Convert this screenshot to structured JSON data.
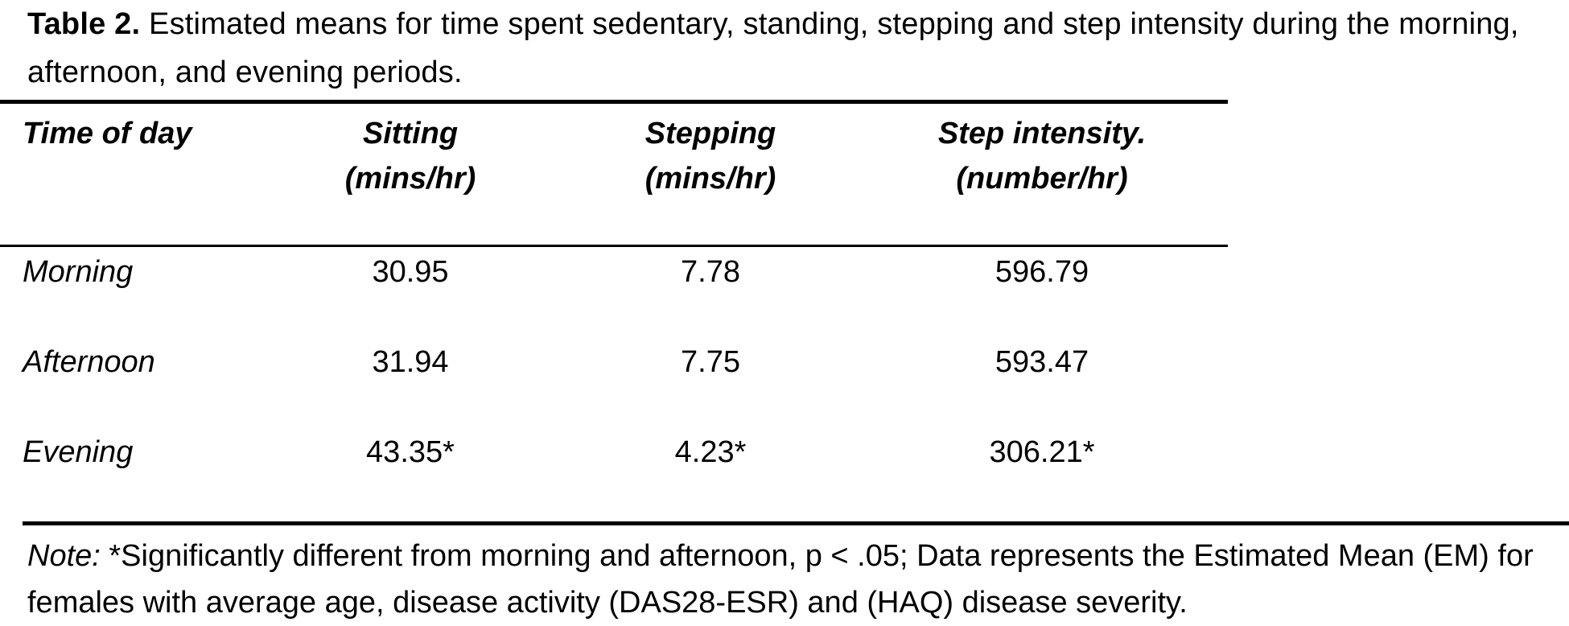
{
  "caption": {
    "label": "Table 2.",
    "text": " Estimated means for time spent sedentary, standing, stepping and step intensity during the morning, afternoon, and evening periods."
  },
  "table": {
    "headers": [
      {
        "line1": "Time of day",
        "line2": ""
      },
      {
        "line1": "Sitting",
        "line2": "(mins/hr)"
      },
      {
        "line1": "Stepping",
        "line2": "(mins/hr)"
      },
      {
        "line1": "Step intensity.",
        "line2": "(number/hr)"
      }
    ],
    "rows": [
      {
        "label": "Morning",
        "sitting": "30.95",
        "stepping": "7.78",
        "intensity": "596.79"
      },
      {
        "label": "Afternoon",
        "sitting": "31.94",
        "stepping": "7.75",
        "intensity": "593.47"
      },
      {
        "label": "Evening",
        "sitting": "43.35*",
        "stepping": "4.23*",
        "intensity": "306.21*"
      }
    ]
  },
  "note": {
    "label": "Note:",
    "text": " *Significantly different from morning and afternoon, p < .05; Data represents the Estimated Mean (EM) for females with average age, disease activity (DAS28-ESR) and (HAQ) disease severity."
  }
}
